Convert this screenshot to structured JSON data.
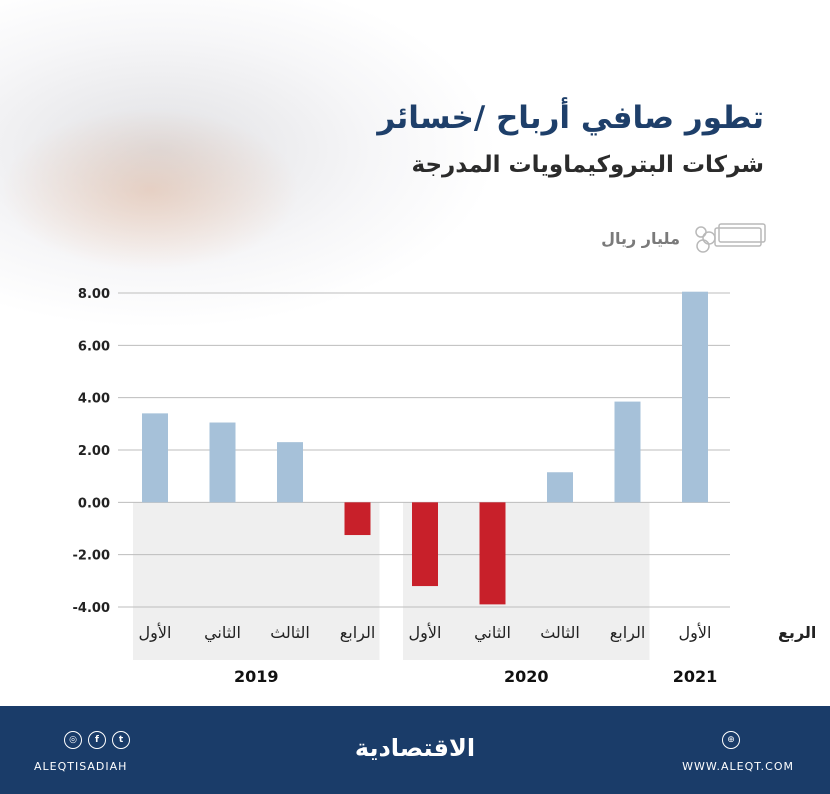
{
  "header": {
    "title": "تطور صافي أرباح /خسائر",
    "subtitle": "شركات البتروكيماويات المدرجة",
    "unit": "مليار ريال"
  },
  "colors": {
    "positive": "#a6c1d9",
    "negative": "#c8202a",
    "band": "#efefef",
    "title": "#1e3f6a",
    "footer": "#1a3c69"
  },
  "chart_data": {
    "type": "bar",
    "x_axis_label": "الربع",
    "categories": [
      "الأول",
      "الثاني",
      "الثالث",
      "الرابع",
      "الأول",
      "الثاني",
      "الثالث",
      "الرابع",
      "الأول"
    ],
    "years": [
      {
        "label": "2019",
        "count": 4
      },
      {
        "label": "2020",
        "count": 4
      },
      {
        "label": "2021",
        "count": 1
      }
    ],
    "values": [
      3.4,
      3.05,
      2.3,
      -1.25,
      -3.2,
      -3.9,
      1.15,
      3.85,
      8.05
    ],
    "ylim": [
      -4,
      8
    ],
    "y_ticks": [
      8,
      6,
      4,
      2,
      0,
      -2,
      -4
    ],
    "y_tick_labels": [
      "8.00",
      "6.00",
      "4.00",
      "2.00",
      "0.00",
      "-2.00",
      "-4.00"
    ],
    "grid": true
  },
  "footer": {
    "brand": "الاقتصادية",
    "handle": "ALEQTISADIAH",
    "website": "WWW.ALEQT.COM",
    "social_icons": [
      "instagram-icon",
      "facebook-icon",
      "twitter-icon"
    ]
  }
}
